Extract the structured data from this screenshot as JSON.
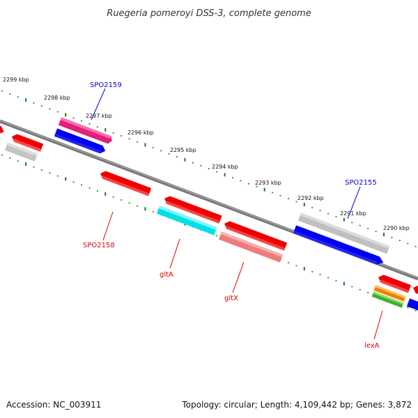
{
  "title": "Ruegeria pomeroyi DSS-3, complete genome",
  "footer": {
    "accession": "Accession: NC_003911",
    "summary": "Topology: circular; Length: 4,109,442 bp; Genes: 3,872"
  },
  "kbp_labels": [
    "2299 kbp",
    "2298 kbp",
    "2297 kbp",
    "2296 kbp",
    "2295 kbp",
    "2294 kbp",
    "2293 kbp",
    "2292 kbp",
    "2291 kbp",
    "2290 kbp"
  ],
  "gene_labels": [
    {
      "text": "SPO2159",
      "color": "#0000cc"
    },
    {
      "text": "SPO2155",
      "color": "#0000cc"
    },
    {
      "text": "SPO2158",
      "color": "#dd0000"
    },
    {
      "text": "gltA",
      "color": "#dd0000"
    },
    {
      "text": "gltX",
      "color": "#dd0000"
    },
    {
      "text": "lexA",
      "color": "#dd0000"
    }
  ],
  "colors": {
    "backbone": "#808080",
    "tick": "#1a7a1a",
    "red": "#ee0000",
    "blue": "#0000ee",
    "magenta": "#e0207a",
    "cyan": "#00e0e8",
    "pink": "#ee8080",
    "gray": "#c0c0c0",
    "orange": "#f08000",
    "green": "#40b030"
  }
}
